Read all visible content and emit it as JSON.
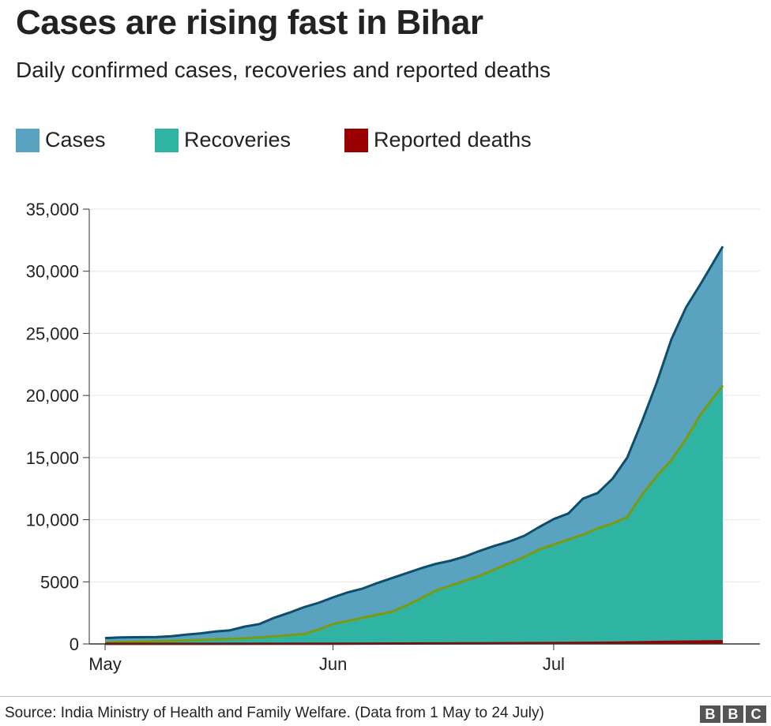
{
  "header": {
    "title": "Cases are rising fast in Bihar",
    "subtitle": "Daily confirmed cases, recoveries and reported deaths"
  },
  "legend": [
    {
      "label": "Cases",
      "color": "#5aa3c0"
    },
    {
      "label": "Recoveries",
      "color": "#2fb4a4"
    },
    {
      "label": "Reported deaths",
      "color": "#990000"
    }
  ],
  "footer": {
    "source": "Source: India Ministry of Health and Family Welfare. (Data from 1 May to 24 July)",
    "logo_letters": [
      "B",
      "B",
      "C"
    ]
  },
  "chart_data": {
    "type": "area",
    "x_unit": "date",
    "date_range": [
      "2020-05-01",
      "2020-07-24"
    ],
    "x_ticks": [
      "May",
      "Jun",
      "Jul"
    ],
    "y_ticks": [
      "0",
      "5000",
      "10,000",
      "15,000",
      "20,000",
      "25,000",
      "30,000",
      "35,000"
    ],
    "ylim": [
      0,
      35000
    ],
    "grid": true,
    "legend_position": "top-left",
    "series": [
      {
        "name": "Cases",
        "fill": "#5aa3c0",
        "stroke": "#0e4d6b",
        "points": [
          [
            "2020-05-01",
            470
          ],
          [
            "2020-05-03",
            520
          ],
          [
            "2020-05-05",
            540
          ],
          [
            "2020-05-08",
            560
          ],
          [
            "2020-05-10",
            620
          ],
          [
            "2020-05-12",
            750
          ],
          [
            "2020-05-14",
            850
          ],
          [
            "2020-05-16",
            1000
          ],
          [
            "2020-05-18",
            1100
          ],
          [
            "2020-05-20",
            1400
          ],
          [
            "2020-05-22",
            1600
          ],
          [
            "2020-05-24",
            2100
          ],
          [
            "2020-05-26",
            2500
          ],
          [
            "2020-05-28",
            2950
          ],
          [
            "2020-05-30",
            3300
          ],
          [
            "2020-06-01",
            3750
          ],
          [
            "2020-06-03",
            4150
          ],
          [
            "2020-06-05",
            4450
          ],
          [
            "2020-06-07",
            4900
          ],
          [
            "2020-06-09",
            5300
          ],
          [
            "2020-06-11",
            5700
          ],
          [
            "2020-06-13",
            6100
          ],
          [
            "2020-06-15",
            6450
          ],
          [
            "2020-06-17",
            6700
          ],
          [
            "2020-06-19",
            7050
          ],
          [
            "2020-06-21",
            7500
          ],
          [
            "2020-06-23",
            7900
          ],
          [
            "2020-06-25",
            8250
          ],
          [
            "2020-06-27",
            8700
          ],
          [
            "2020-06-29",
            9400
          ],
          [
            "2020-07-01",
            10050
          ],
          [
            "2020-07-03",
            10500
          ],
          [
            "2020-07-05",
            11700
          ],
          [
            "2020-07-07",
            12150
          ],
          [
            "2020-07-09",
            13300
          ],
          [
            "2020-07-11",
            15000
          ],
          [
            "2020-07-13",
            17900
          ],
          [
            "2020-07-15",
            21000
          ],
          [
            "2020-07-17",
            24500
          ],
          [
            "2020-07-19",
            27100
          ],
          [
            "2020-07-21",
            29000
          ],
          [
            "2020-07-24",
            32000
          ]
        ]
      },
      {
        "name": "Recoveries",
        "fill": "#2fb4a4",
        "stroke": "#7a9a10",
        "points": [
          [
            "2020-05-01",
            120
          ],
          [
            "2020-05-05",
            180
          ],
          [
            "2020-05-10",
            250
          ],
          [
            "2020-05-15",
            350
          ],
          [
            "2020-05-20",
            450
          ],
          [
            "2020-05-25",
            650
          ],
          [
            "2020-05-28",
            800
          ],
          [
            "2020-05-30",
            1150
          ],
          [
            "2020-06-01",
            1600
          ],
          [
            "2020-06-03",
            1850
          ],
          [
            "2020-06-05",
            2100
          ],
          [
            "2020-06-07",
            2350
          ],
          [
            "2020-06-09",
            2600
          ],
          [
            "2020-06-11",
            3100
          ],
          [
            "2020-06-13",
            3700
          ],
          [
            "2020-06-15",
            4300
          ],
          [
            "2020-06-17",
            4700
          ],
          [
            "2020-06-19",
            5100
          ],
          [
            "2020-06-21",
            5500
          ],
          [
            "2020-06-23",
            6000
          ],
          [
            "2020-06-25",
            6500
          ],
          [
            "2020-06-27",
            7000
          ],
          [
            "2020-06-29",
            7600
          ],
          [
            "2020-07-01",
            8000
          ],
          [
            "2020-07-03",
            8400
          ],
          [
            "2020-07-05",
            8800
          ],
          [
            "2020-07-07",
            9300
          ],
          [
            "2020-07-09",
            9700
          ],
          [
            "2020-07-11",
            10200
          ],
          [
            "2020-07-13",
            12000
          ],
          [
            "2020-07-15",
            13500
          ],
          [
            "2020-07-17",
            14800
          ],
          [
            "2020-07-19",
            16500
          ],
          [
            "2020-07-21",
            18500
          ],
          [
            "2020-07-24",
            20800
          ]
        ]
      },
      {
        "name": "Reported deaths",
        "fill": "#990000",
        "stroke": "#990000",
        "points": [
          [
            "2020-05-01",
            4
          ],
          [
            "2020-05-15",
            7
          ],
          [
            "2020-06-01",
            20
          ],
          [
            "2020-06-15",
            35
          ],
          [
            "2020-07-01",
            70
          ],
          [
            "2020-07-10",
            110
          ],
          [
            "2020-07-17",
            175
          ],
          [
            "2020-07-24",
            217
          ]
        ]
      }
    ]
  }
}
